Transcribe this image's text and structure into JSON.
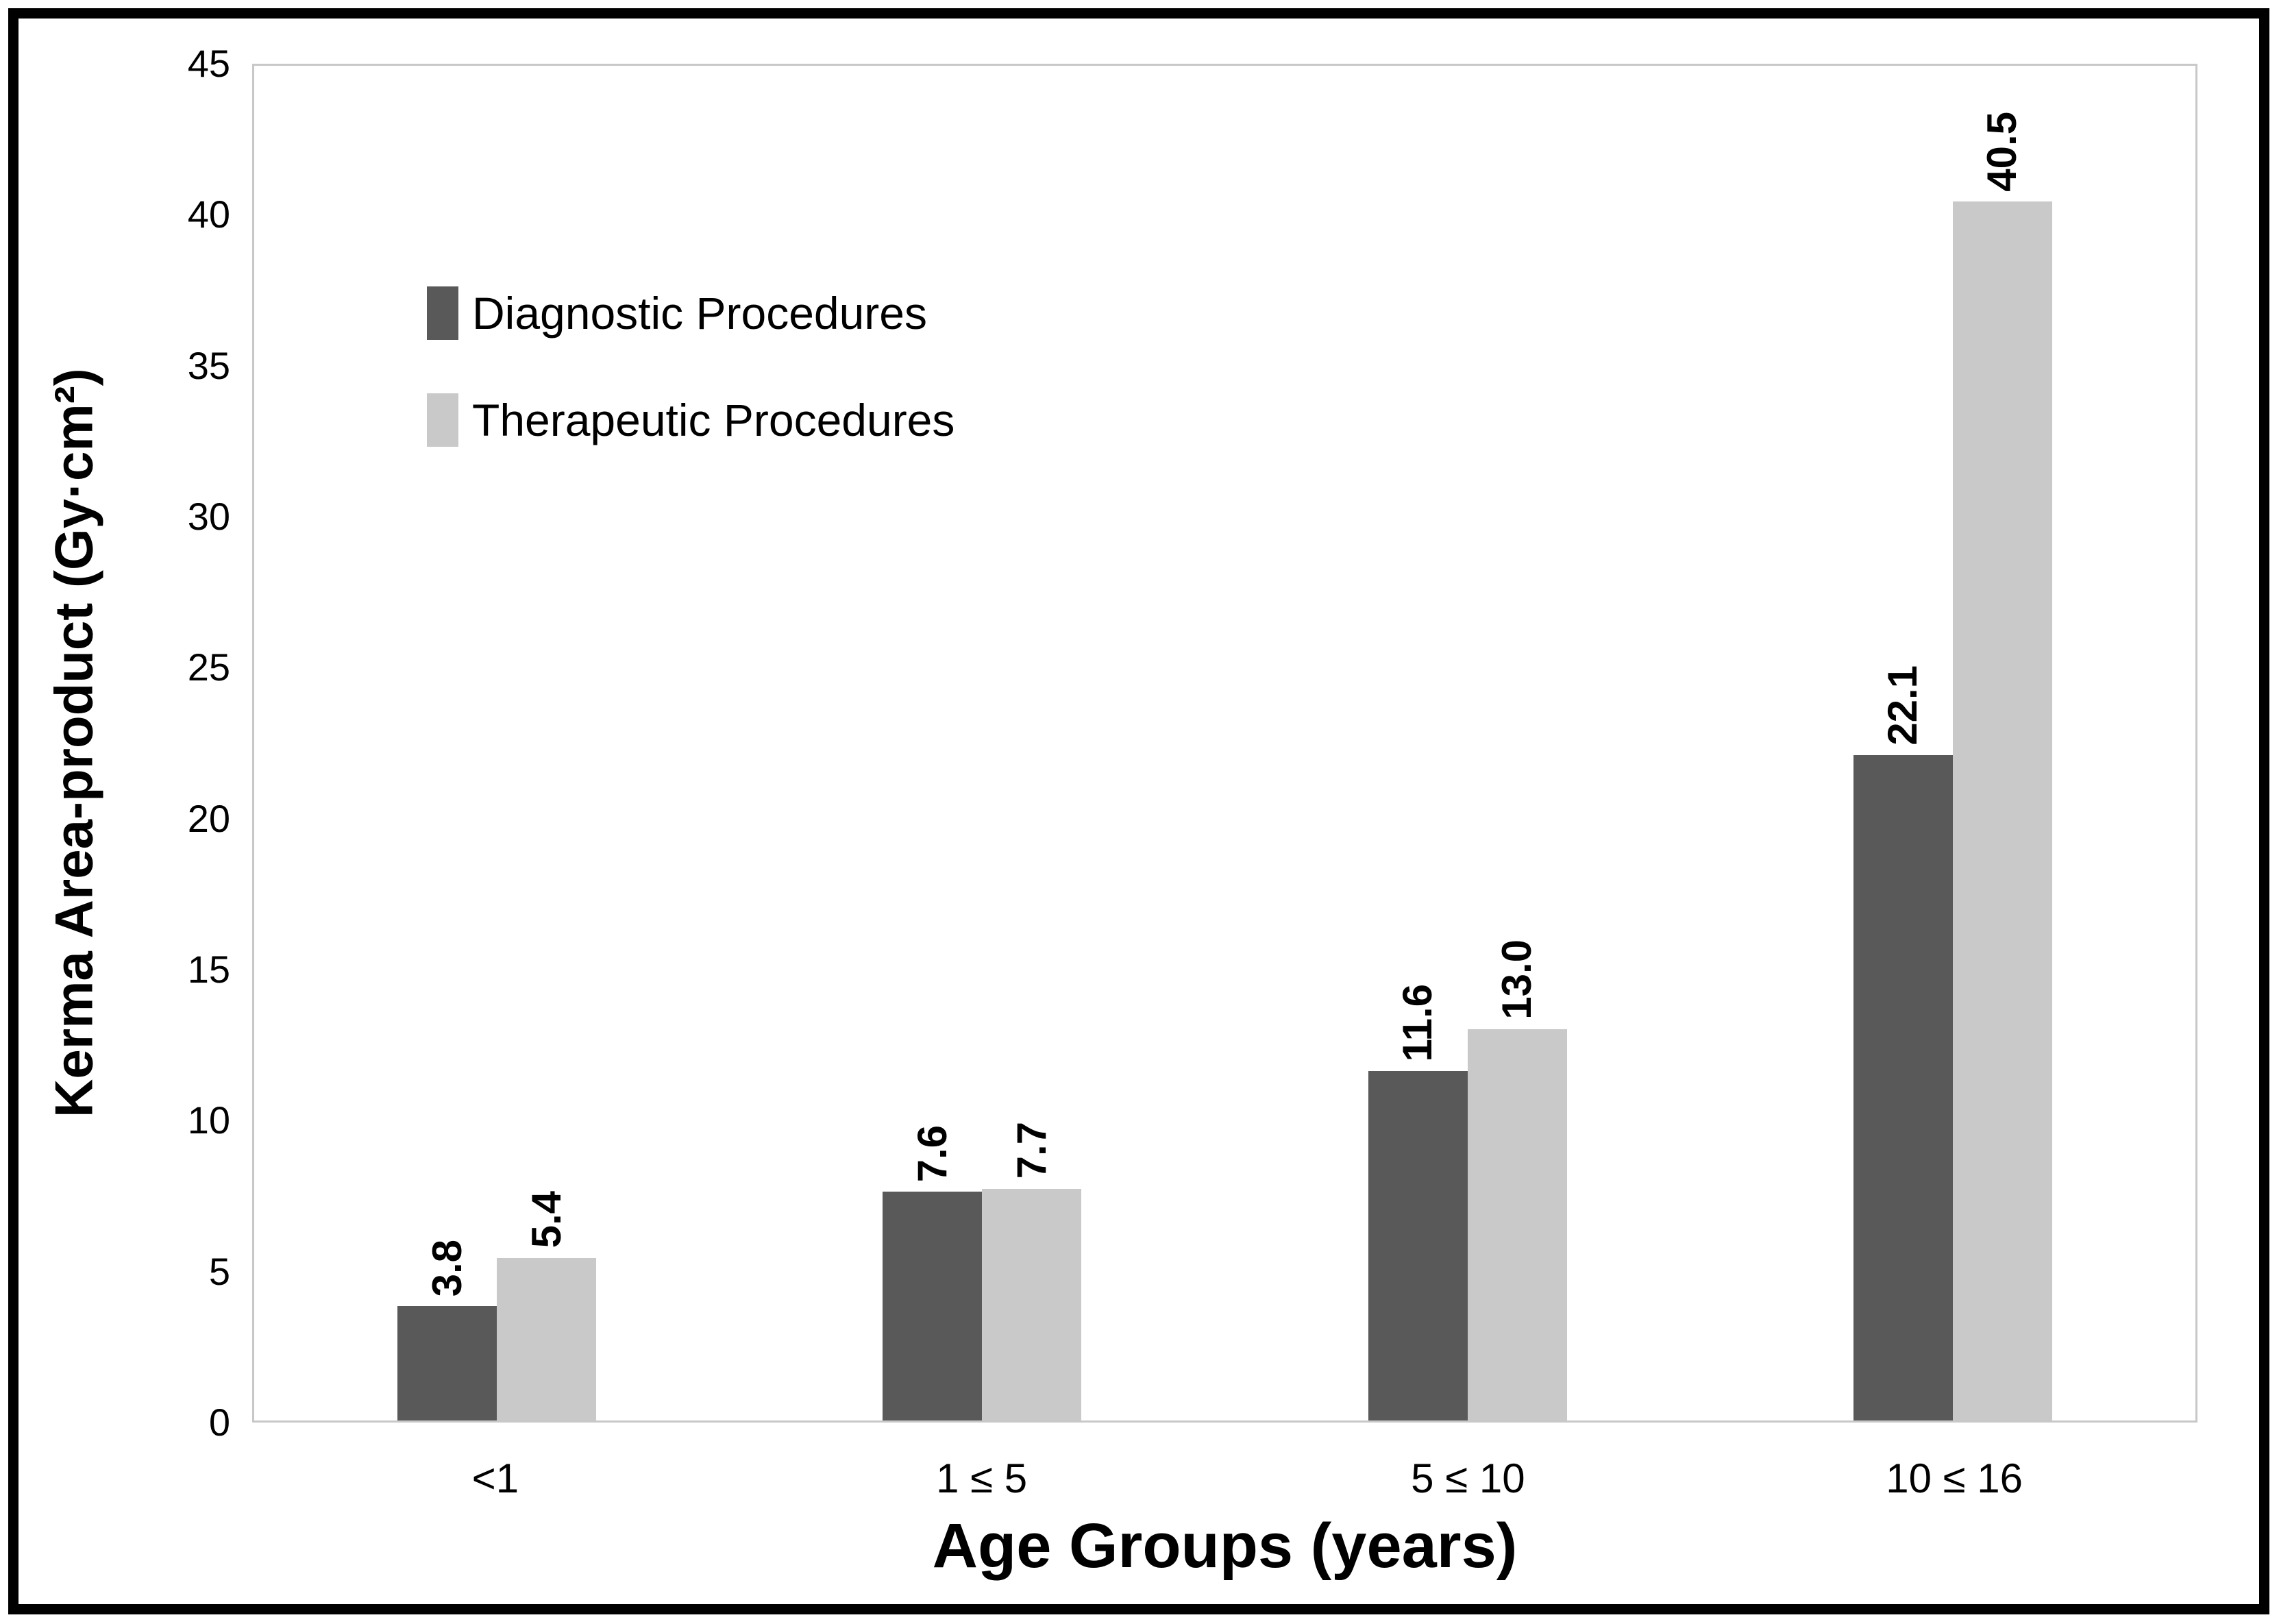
{
  "chart_data": {
    "type": "bar",
    "title": "",
    "categories": [
      "<1",
      "1 ≤ 5",
      "5 ≤ 10",
      "10 ≤ 16"
    ],
    "series": [
      {
        "name": "Diagnostic Procedures",
        "color": "#595959",
        "values": [
          3.8,
          7.6,
          11.6,
          22.1
        ],
        "labels": [
          "3.8",
          "7.6",
          "11.6",
          "22.1"
        ]
      },
      {
        "name": "Therapeutic Procedures",
        "color": "#c9c9c9",
        "values": [
          5.4,
          7.7,
          13.0,
          40.5
        ],
        "labels": [
          "5.4",
          "7.7",
          "13.0",
          "40.5"
        ]
      }
    ],
    "xlabel": "Age Groups (years)",
    "ylabel": "Kerma Area-product (Gy·cm²)",
    "ylim": [
      0,
      45
    ],
    "yticks": [
      0,
      5,
      10,
      15,
      20,
      25,
      30,
      35,
      40,
      45
    ],
    "grid": false,
    "legend_position": "inside-top-left",
    "axis_color": "#c8c8c8",
    "frame_color": "#000000",
    "data_label_rotation_deg": -90
  }
}
